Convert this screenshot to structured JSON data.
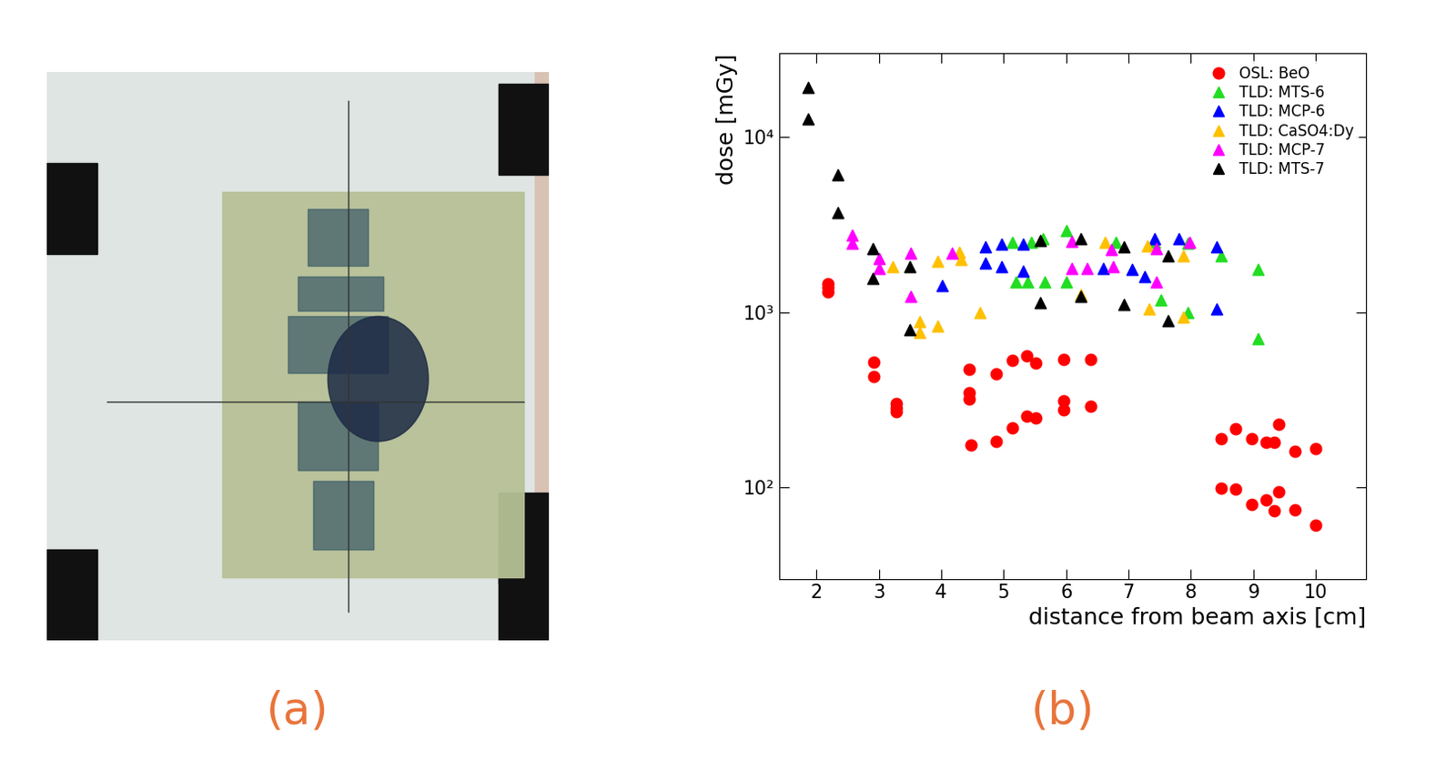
{
  "panel_labels": [
    "(a)",
    "(b)"
  ],
  "chart_data": {
    "type": "scatter",
    "x_label": "distance from beam axis [cm]",
    "y_label": "dose [mGy]",
    "log": "y",
    "xlim": [
      1.4,
      10.8
    ],
    "xticks": [
      2,
      3,
      4,
      5,
      6,
      7,
      8,
      9,
      10
    ],
    "ylim": [
      30,
      30000
    ],
    "yticks": [
      {
        "value": 100,
        "label": "10²"
      },
      {
        "value": 1000,
        "label": "10³"
      },
      {
        "value": 10000,
        "label": "10⁴"
      }
    ],
    "legend": "upper right",
    "grid": false,
    "series": [
      {
        "name": "OSL: BeO",
        "color": "#ff0000",
        "marker": "circle",
        "x": [
          2.19,
          2.19,
          2.19,
          2.92,
          2.92,
          3.28,
          3.28,
          3.28,
          4.45,
          4.45,
          4.45,
          4.48,
          4.88,
          4.88,
          5.14,
          5.14,
          5.37,
          5.37,
          5.51,
          5.51,
          5.96,
          5.96,
          5.96,
          6.4,
          6.4,
          8.48,
          8.48,
          8.71,
          8.71,
          8.98,
          8.98,
          9.21,
          9.21,
          9.33,
          9.33,
          9.41,
          9.41,
          9.67,
          9.67,
          10.0,
          10.0
        ],
        "values": [
          1450,
          1300,
          1380,
          522,
          432,
          300,
          272,
          285,
          473,
          347,
          318,
          175,
          443,
          183,
          533,
          219,
          563,
          255,
          511,
          250,
          540,
          311,
          279,
          540,
          291,
          190,
          99,
          216,
          98,
          190,
          80,
          181,
          85,
          181,
          74,
          229,
          95,
          161,
          75,
          166,
          61
        ]
      },
      {
        "name": "TLD: MTS-6",
        "color": "#22dd22",
        "marker": "triangle",
        "x": [
          5.14,
          5.2,
          5.38,
          5.44,
          5.63,
          5.66,
          6.01,
          6.01,
          6.8,
          7.42,
          7.52,
          7.95,
          7.95,
          8.48,
          9.07,
          9.07
        ],
        "values": [
          2520,
          1490,
          1490,
          2520,
          2630,
          1490,
          2910,
          1490,
          2520,
          2520,
          1170,
          2470,
          990,
          2110,
          1750,
          703
        ]
      },
      {
        "name": "TLD: MCP-6",
        "color": "#0000ff",
        "marker": "triangle",
        "x": [
          4.02,
          4.7,
          4.7,
          4.97,
          4.97,
          5.31,
          5.31,
          6.59,
          7.06,
          7.26,
          7.42,
          7.81,
          8.41,
          8.41
        ],
        "values": [
          1420,
          2360,
          1900,
          2450,
          1830,
          1710,
          2450,
          1780,
          1750,
          1600,
          2630,
          2630,
          2360,
          1040
        ]
      },
      {
        "name": "TLD: CaSO4:Dy",
        "color": "#ffc000",
        "marker": "triangle",
        "x": [
          3.22,
          3.65,
          3.65,
          3.94,
          3.94,
          4.29,
          4.32,
          4.62,
          6.23,
          6.62,
          7.3,
          7.33,
          7.88,
          7.88
        ],
        "values": [
          1810,
          886,
          770,
          838,
          1960,
          2200,
          2010,
          990,
          1260,
          2520,
          2380,
          1040,
          936,
          2110
        ]
      },
      {
        "name": "TLD: MCP-7",
        "color": "#ff00ff",
        "marker": "triangle",
        "x": [
          2.57,
          2.57,
          3.0,
          3.0,
          3.51,
          3.51,
          4.17,
          6.09,
          6.09,
          6.33,
          6.73,
          6.76,
          7.45,
          7.45,
          7.98
        ],
        "values": [
          2750,
          2480,
          2020,
          1780,
          2180,
          1230,
          2180,
          2530,
          1780,
          1780,
          2270,
          1820,
          2310,
          1490,
          2520
        ]
      },
      {
        "name": "TLD: MTS-7",
        "color": "#000000",
        "marker": "triangle",
        "x": [
          1.86,
          1.86,
          2.34,
          2.34,
          2.9,
          2.9,
          3.5,
          3.5,
          5.58,
          5.58,
          6.24,
          6.24,
          6.92,
          6.92,
          7.63,
          7.63
        ],
        "values": [
          19100,
          12700,
          6100,
          3700,
          2310,
          1570,
          1810,
          794,
          2580,
          1130,
          2640,
          1230,
          2360,
          1110,
          2110,
          896
        ]
      }
    ]
  }
}
